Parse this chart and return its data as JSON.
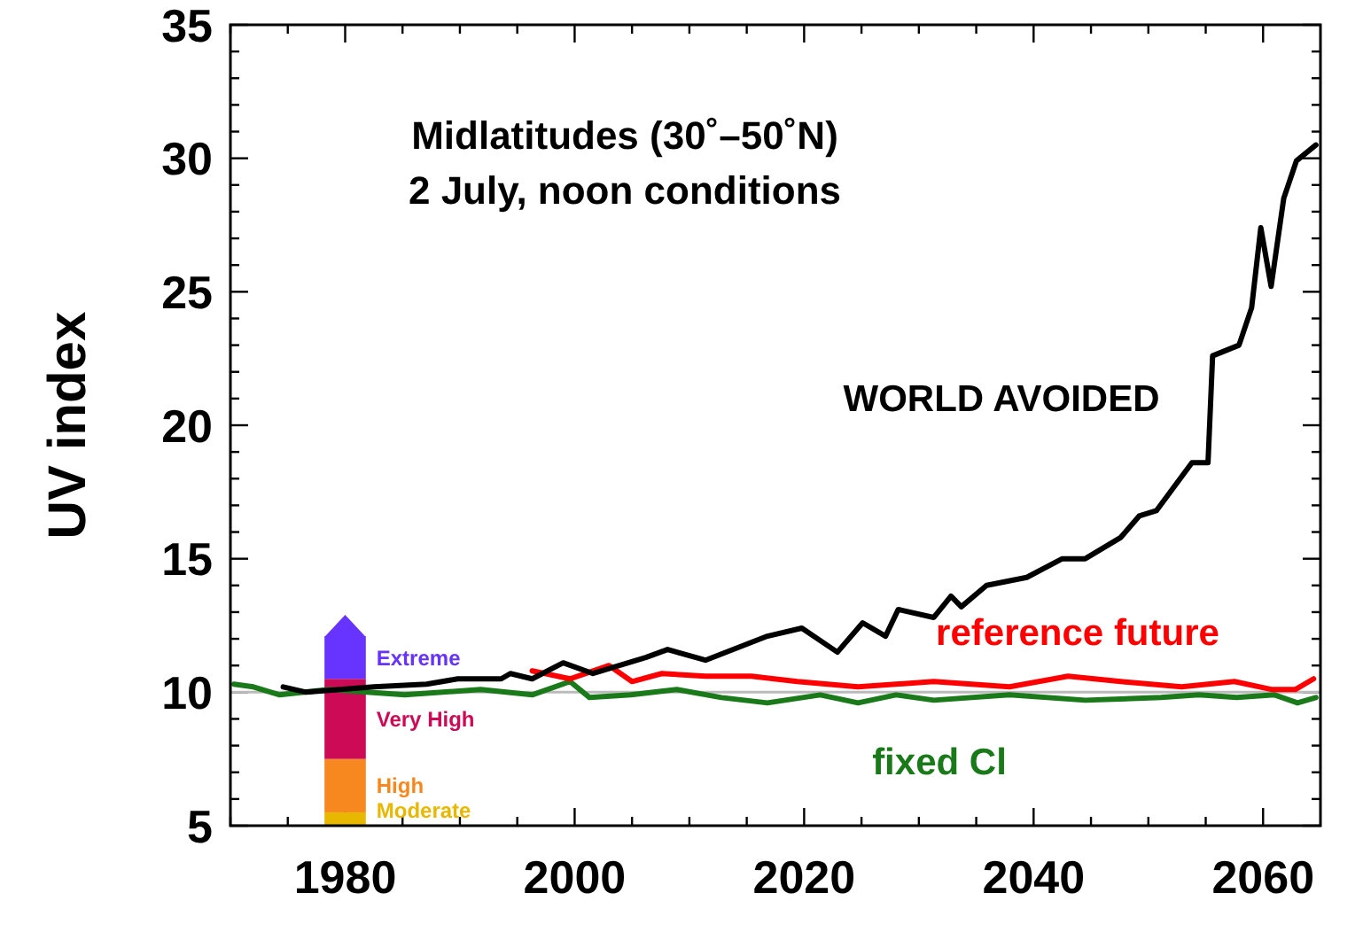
{
  "chart_data": {
    "type": "line",
    "title": "Midlatitudes (30˚–50˚N)",
    "subtitle": "2 July, noon conditions",
    "ylabel": "UV index",
    "xlim": [
      1970,
      2065
    ],
    "ylim": [
      5,
      35
    ],
    "xticks": [
      {
        "value": 1970,
        "label": null
      },
      {
        "value": 1975,
        "label": null
      },
      1980,
      {
        "value": 1985,
        "label": null
      },
      {
        "value": 1990,
        "label": null
      },
      {
        "value": 1995,
        "label": null
      },
      2000,
      {
        "value": 2005,
        "label": null
      },
      {
        "value": 2010,
        "label": null
      },
      {
        "value": 2015,
        "label": null
      },
      2020,
      {
        "value": 2025,
        "label": null
      },
      {
        "value": 2030,
        "label": null
      },
      {
        "value": 2035,
        "label": null
      },
      2040,
      {
        "value": 2045,
        "label": null
      },
      {
        "value": 2050,
        "label": null
      },
      {
        "value": 2055,
        "label": null
      },
      2060
    ],
    "yticks": [
      5,
      {
        "value": 6,
        "label": null
      },
      {
        "value": 7,
        "label": null
      },
      {
        "value": 8,
        "label": null
      },
      {
        "value": 9,
        "label": null
      },
      10,
      {
        "value": 11,
        "label": null
      },
      {
        "value": 12,
        "label": null
      },
      {
        "value": 13,
        "label": null
      },
      {
        "value": 14,
        "label": null
      },
      15,
      {
        "value": 16,
        "label": null
      },
      {
        "value": 17,
        "label": null
      },
      {
        "value": 18,
        "label": null
      },
      {
        "value": 19,
        "label": null
      },
      20,
      {
        "value": 21,
        "label": null
      },
      {
        "value": 22,
        "label": null
      },
      {
        "value": 23,
        "label": null
      },
      {
        "value": 24,
        "label": null
      },
      25,
      {
        "value": 26,
        "label": null
      },
      {
        "value": 27,
        "label": null
      },
      {
        "value": 28,
        "label": null
      },
      {
        "value": 29,
        "label": null
      },
      30,
      {
        "value": 31,
        "label": null
      },
      {
        "value": 32,
        "label": null
      },
      {
        "value": 33,
        "label": null
      },
      {
        "value": 34,
        "label": null
      },
      35
    ],
    "grid": false,
    "ref_lines": [
      {
        "axis": "y",
        "value": 10,
        "label": null,
        "color": "#bbbbbb"
      }
    ],
    "series": [
      {
        "type": "bar",
        "name": "Moderate",
        "color": "#e8b800",
        "x": [
          1980
        ],
        "base": [
          5
        ],
        "values": [
          0.5
        ]
      },
      {
        "type": "bar",
        "name": "High",
        "color": "#f7881f",
        "x": [
          1980
        ],
        "base": [
          5.5
        ],
        "values": [
          2
        ]
      },
      {
        "type": "bar",
        "name": "Very High",
        "color": "#cc0a55",
        "x": [
          1980
        ],
        "base": [
          7.5
        ],
        "values": [
          3
        ]
      },
      {
        "type": "bar",
        "name": "Extreme",
        "color": "#6633ff",
        "x": [
          1980
        ],
        "base": [
          10.5
        ],
        "values": [
          1.6
        ]
      },
      {
        "name": "fixed Cl",
        "color": "#1a7a1a",
        "x": [
          1970.3,
          1972,
          1974.3,
          1978.6,
          1985.2,
          1991.8,
          1996.3,
          1999.6,
          2001.3,
          2004.9,
          2008.9,
          2012.8,
          2016.8,
          2021.4,
          2024.7,
          2028,
          2031.3,
          2037.9,
          2044.5,
          2051.1,
          2054.4,
          2057.7,
          2061,
          2063,
          2064.6
        ],
        "values": [
          10.3,
          10.2,
          9.9,
          10.1,
          9.9,
          10.1,
          9.9,
          10.4,
          9.8,
          9.9,
          10.1,
          9.8,
          9.6,
          9.9,
          9.6,
          9.9,
          9.7,
          9.9,
          9.7,
          9.8,
          9.9,
          9.8,
          9.9,
          9.6,
          9.8
        ]
      },
      {
        "name": "reference future",
        "color": "#ff0000",
        "x": [
          1996.3,
          1999.6,
          2003,
          2005,
          2007.6,
          2011.4,
          2015.4,
          2019.4,
          2024.7,
          2031.3,
          2037.9,
          2043,
          2047.6,
          2052.9,
          2057.5,
          2060.8,
          2062.8,
          2064.4
        ],
        "values": [
          10.8,
          10.5,
          11.0,
          10.4,
          10.7,
          10.6,
          10.6,
          10.4,
          10.2,
          10.4,
          10.2,
          10.6,
          10.4,
          10.2,
          10.4,
          10.1,
          10.1,
          10.5
        ]
      },
      {
        "name": "WORLD AVOIDED",
        "color": "#000000",
        "x": [
          1974.6,
          1976.6,
          1982.5,
          1987.1,
          1989.8,
          1993.6,
          1994.4,
          1996.3,
          1999,
          2001.6,
          2006.2,
          2008.1,
          2011.4,
          2016.8,
          2019.8,
          2022.9,
          2025.1,
          2027.1,
          2028.2,
          2031.3,
          2032.8,
          2033.7,
          2035.9,
          2039.4,
          2042.5,
          2044.5,
          2047.6,
          2049.2,
          2050.7,
          2053.8,
          2055.2,
          2055.6,
          2057.9,
          2059,
          2059.8,
          2060.7,
          2061.8,
          2062.9,
          2064.6
        ],
        "values": [
          10.2,
          10.0,
          10.2,
          10.3,
          10.5,
          10.5,
          10.7,
          10.5,
          11.1,
          10.7,
          11.3,
          11.6,
          11.2,
          12.1,
          12.4,
          11.5,
          12.6,
          12.1,
          13.1,
          12.8,
          13.6,
          13.2,
          14.0,
          14.3,
          15.0,
          15.0,
          15.8,
          16.6,
          16.8,
          18.6,
          18.6,
          22.6,
          23.0,
          24.4,
          27.4,
          25.2,
          28.5,
          29.9,
          30.5
        ]
      }
    ]
  }
}
